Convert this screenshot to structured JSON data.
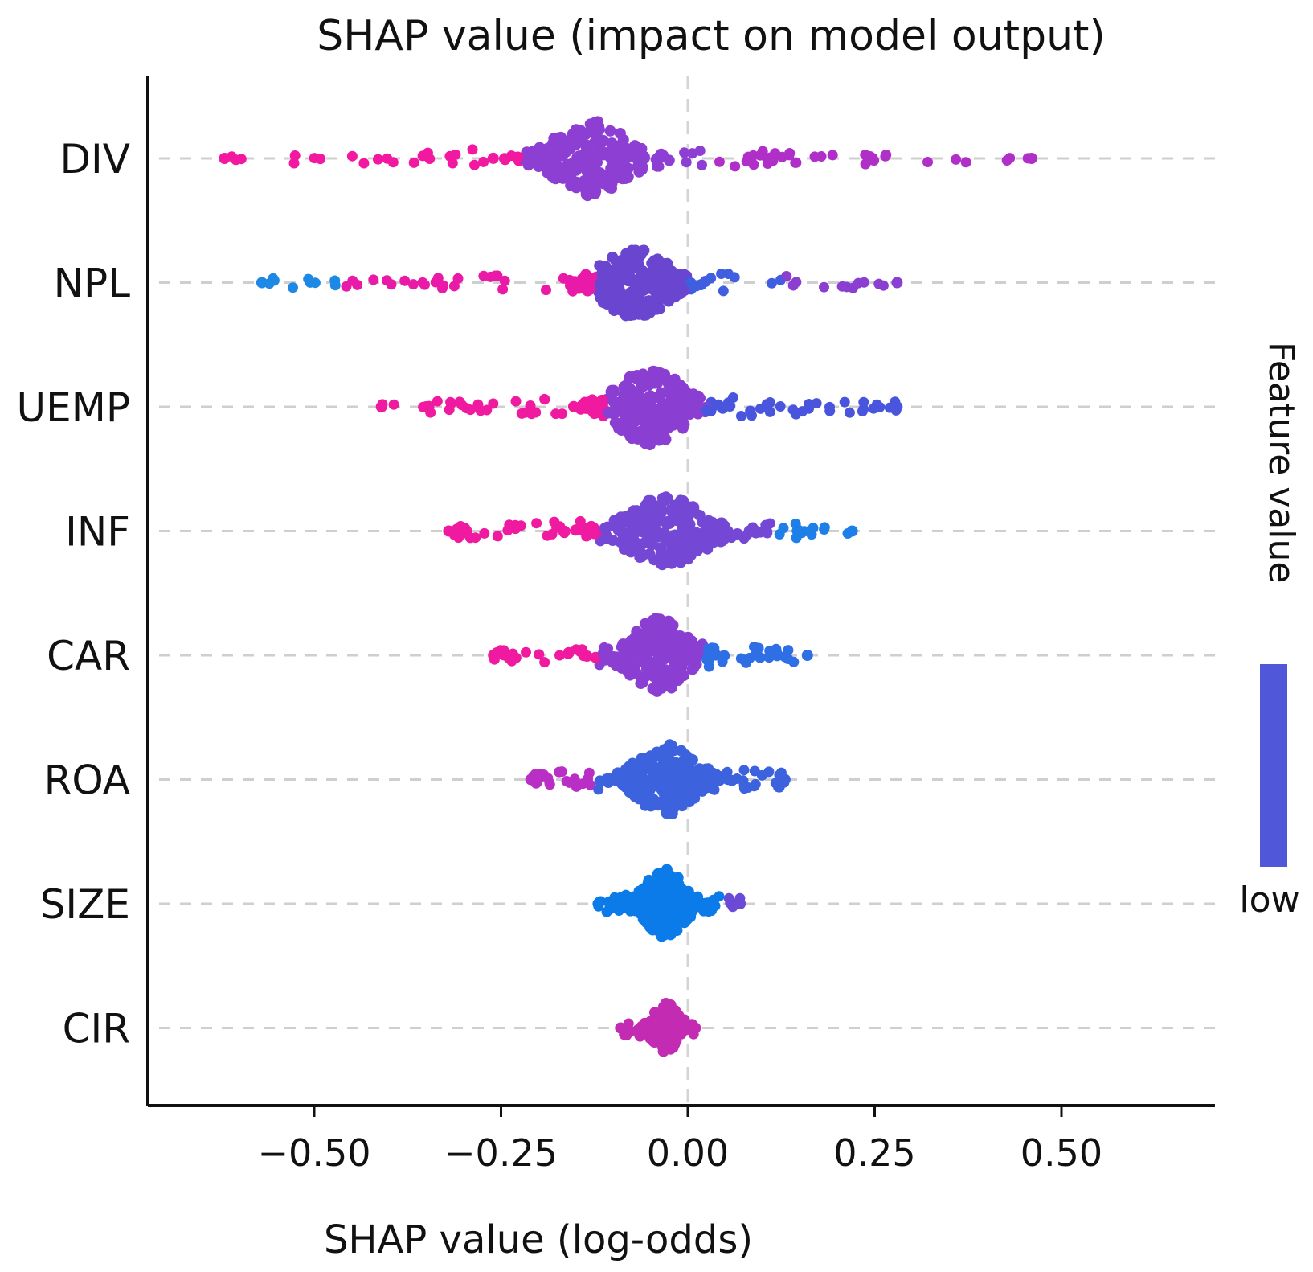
{
  "chart_data": {
    "type": "beeswarm",
    "title": "SHAP value (impact on model output)",
    "xlabel": "SHAP value (log-odds)",
    "xlim": [
      -0.7,
      0.7
    ],
    "xticks": [
      -0.5,
      -0.25,
      0.0,
      0.25,
      0.5
    ],
    "xtick_labels": [
      "−0.50",
      "−0.25",
      "0.00",
      "0.25",
      "0.50"
    ],
    "colorbar": {
      "title": "Feature value",
      "low_label": "low",
      "color": "#5057d8"
    },
    "features": [
      {
        "name": "DIV",
        "min": -0.62,
        "max": 0.46,
        "peak": -0.13,
        "spread": 0.045,
        "height": 0.62,
        "density": 220,
        "zones": [
          {
            "upto": -0.22,
            "color": "#f218a0"
          },
          {
            "upto": 0.02,
            "color": "#8c3fd2"
          },
          {
            "upto": 1,
            "color": "#b02fc8"
          }
        ]
      },
      {
        "name": "NPL",
        "min": -0.57,
        "max": 0.28,
        "peak": -0.07,
        "spread": 0.04,
        "height": 0.58,
        "density": 210,
        "zones": [
          {
            "upto": -0.46,
            "color": "#1e88e5"
          },
          {
            "upto": -0.12,
            "color": "#ea1aa8"
          },
          {
            "upto": 0.0,
            "color": "#6a45d0"
          },
          {
            "upto": 0.13,
            "color": "#3f5fe0"
          },
          {
            "upto": 1,
            "color": "#8a3fd0"
          }
        ]
      },
      {
        "name": "UEMP",
        "min": -0.41,
        "max": 0.28,
        "peak": -0.05,
        "spread": 0.04,
        "height": 0.62,
        "density": 220,
        "zones": [
          {
            "upto": -0.11,
            "color": "#f01aa0"
          },
          {
            "upto": 0.025,
            "color": "#8a3fd2"
          },
          {
            "upto": 1,
            "color": "#4a55de"
          }
        ]
      },
      {
        "name": "INF",
        "min": -0.32,
        "max": 0.22,
        "peak": -0.03,
        "spread": 0.05,
        "height": 0.55,
        "density": 210,
        "zones": [
          {
            "upto": -0.12,
            "color": "#f01aa0"
          },
          {
            "upto": 0.12,
            "color": "#7448d4"
          },
          {
            "upto": 1,
            "color": "#1f7fe8"
          }
        ]
      },
      {
        "name": "CAR",
        "min": -0.26,
        "max": 0.16,
        "peak": -0.04,
        "spread": 0.035,
        "height": 0.6,
        "density": 200,
        "zones": [
          {
            "upto": -0.12,
            "color": "#f01aa0"
          },
          {
            "upto": 0.025,
            "color": "#8a3fd2"
          },
          {
            "upto": 1,
            "color": "#2f6fe6"
          }
        ]
      },
      {
        "name": "ROA",
        "min": -0.21,
        "max": 0.13,
        "peak": -0.03,
        "spread": 0.035,
        "height": 0.58,
        "density": 190,
        "zones": [
          {
            "upto": -0.12,
            "color": "#b92fc6"
          },
          {
            "upto": 1,
            "color": "#3c62de"
          }
        ]
      },
      {
        "name": "SIZE",
        "min": -0.12,
        "max": 0.07,
        "peak": -0.03,
        "spread": 0.025,
        "height": 0.56,
        "density": 160,
        "zones": [
          {
            "upto": 0.055,
            "color": "#0a7be8"
          },
          {
            "upto": 1,
            "color": "#6b4ad6"
          }
        ]
      },
      {
        "name": "CIR",
        "min": -0.09,
        "max": 0.01,
        "peak": -0.03,
        "spread": 0.015,
        "height": 0.42,
        "density": 90,
        "zones": [
          {
            "upto": 1,
            "color": "#c32bb3"
          }
        ]
      }
    ]
  }
}
